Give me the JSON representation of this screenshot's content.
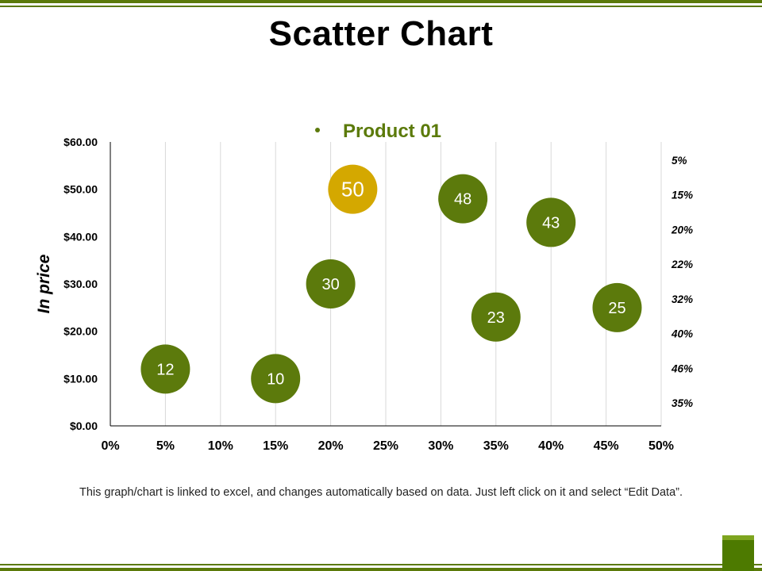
{
  "title": "Scatter Chart",
  "footer": "This graph/chart is linked to excel, and changes automatically based on data. Just left click on it and select “Edit Data”.",
  "colors": {
    "accent": "#5b7a0a",
    "bubble": "#5c7a0c",
    "highlight": "#d4a800"
  },
  "chart_data": {
    "type": "scatter",
    "title": "",
    "legend": {
      "position": "top",
      "entries": [
        "Product 01"
      ]
    },
    "ylabel": "In price",
    "xlabel": "",
    "xlim": [
      0,
      0.5
    ],
    "ylim": [
      0,
      60
    ],
    "x_ticks": [
      "0%",
      "5%",
      "10%",
      "15%",
      "20%",
      "25%",
      "30%",
      "35%",
      "40%",
      "45%",
      "50%"
    ],
    "y_ticks": [
      "$0.00",
      "$10.00",
      "$20.00",
      "$30.00",
      "$40.00",
      "$50.00",
      "$60.00"
    ],
    "right_labels": [
      "5%",
      "15%",
      "20%",
      "22%",
      "32%",
      "40%",
      "46%",
      "35%"
    ],
    "grid": {
      "vertical": true,
      "horizontal": false
    },
    "series": [
      {
        "name": "Product 01",
        "points": [
          {
            "x": 0.05,
            "y": 12,
            "label": "12"
          },
          {
            "x": 0.15,
            "y": 10,
            "label": "10"
          },
          {
            "x": 0.2,
            "y": 30,
            "label": "30"
          },
          {
            "x": 0.22,
            "y": 50,
            "label": "50",
            "highlight": true
          },
          {
            "x": 0.32,
            "y": 48,
            "label": "48"
          },
          {
            "x": 0.35,
            "y": 23,
            "label": "23"
          },
          {
            "x": 0.4,
            "y": 43,
            "label": "43"
          },
          {
            "x": 0.46,
            "y": 25,
            "label": "25"
          }
        ]
      }
    ]
  }
}
